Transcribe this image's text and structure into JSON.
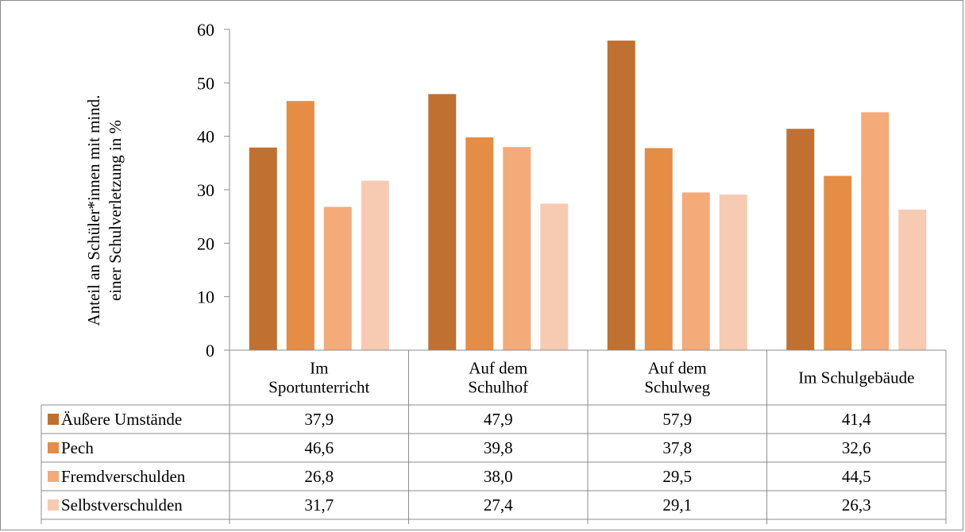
{
  "chart_data": {
    "type": "bar",
    "categories": [
      [
        "Im",
        "Sportunterricht"
      ],
      [
        "Auf dem",
        "Schulhof"
      ],
      [
        "Auf dem",
        "Schulweg"
      ],
      [
        "Im Schulgebäude"
      ]
    ],
    "series": [
      {
        "name": "Äußere Umstände",
        "color": "#c07030",
        "values": [
          37.9,
          47.9,
          57.9,
          41.4
        ],
        "labels": [
          "37,9",
          "47,9",
          "57,9",
          "41,4"
        ]
      },
      {
        "name": "Pech",
        "color": "#e58c45",
        "values": [
          46.6,
          39.8,
          37.8,
          32.6
        ],
        "labels": [
          "46,6",
          "39,8",
          "37,8",
          "32,6"
        ]
      },
      {
        "name": "Fremdverschulden",
        "color": "#f5aa7a",
        "values": [
          26.8,
          38.0,
          29.5,
          44.5
        ],
        "labels": [
          "26,8",
          "38,0",
          "29,5",
          "44,5"
        ]
      },
      {
        "name": "Selbstverschulden",
        "color": "#f7cab2",
        "values": [
          31.7,
          27.4,
          29.1,
          26.3
        ],
        "labels": [
          "31,7",
          "27,4",
          "29,1",
          "26,3"
        ]
      }
    ],
    "ylabel": [
      "Anteil an Schüler*innen mit mind.",
      "einer Schulverletzung in %"
    ],
    "ylim": [
      0,
      60
    ],
    "yticks": [
      "0",
      "10",
      "20",
      "30",
      "40",
      "50",
      "60"
    ],
    "grid": false,
    "legend": "data-table"
  }
}
